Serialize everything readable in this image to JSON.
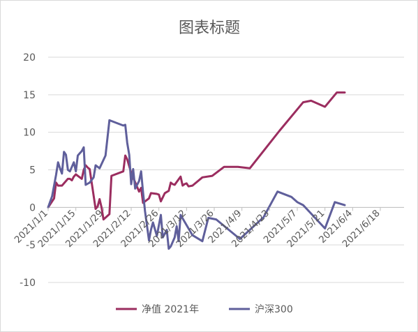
{
  "chart_data": {
    "type": "line",
    "title": "图表标题",
    "xlabel": "",
    "ylabel": "",
    "ylim": [
      -10,
      20
    ],
    "yticks": [
      -10,
      -5,
      0,
      5,
      10,
      15,
      20
    ],
    "x_range": [
      "2021/1/1",
      "2021/6/30"
    ],
    "x_tick_labels": [
      "2021/1/1",
      "2021/1/15",
      "2021/1/29",
      "2021/2/12",
      "2021/2/26",
      "2021/3/12",
      "2021/3/26",
      "2021/4/9",
      "2021/4/23",
      "2021/5/7",
      "2021/5/21",
      "2021/6/4",
      "2021/6/18"
    ],
    "grid": true,
    "legend_position": "bottom",
    "series": [
      {
        "name": "净值  2021年",
        "color": "#9b2d5f",
        "points": [
          [
            "2021/1/1",
            0
          ],
          [
            "2021/1/4",
            1.2
          ],
          [
            "2021/1/5",
            3.3
          ],
          [
            "2021/1/6",
            2.9
          ],
          [
            "2021/1/7",
            2.9
          ],
          [
            "2021/1/8",
            2.9
          ],
          [
            "2021/1/11",
            3.8
          ],
          [
            "2021/1/12",
            3.8
          ],
          [
            "2021/1/13",
            3.6
          ],
          [
            "2021/1/14",
            4.1
          ],
          [
            "2021/1/15",
            4.4
          ],
          [
            "2021/1/18",
            3.8
          ],
          [
            "2021/1/19",
            5.0
          ],
          [
            "2021/1/20",
            5.6
          ],
          [
            "2021/1/21",
            5.3
          ],
          [
            "2021/1/22",
            5.1
          ],
          [
            "2021/1/25",
            -0.2
          ],
          [
            "2021/1/26",
            0.1
          ],
          [
            "2021/1/27",
            1.1
          ],
          [
            "2021/1/28",
            0.0
          ],
          [
            "2021/1/29",
            -1.6
          ],
          [
            "2021/2/1",
            -0.9
          ],
          [
            "2021/2/2",
            4.2
          ],
          [
            "2021/2/8",
            4.8
          ],
          [
            "2021/2/9",
            6.9
          ],
          [
            "2021/2/10",
            6.4
          ],
          [
            "2021/2/12",
            4.6
          ],
          [
            "2021/2/16",
            2.1
          ],
          [
            "2021/2/17",
            2.6
          ],
          [
            "2021/2/18",
            0.6
          ],
          [
            "2021/2/21",
            1.2
          ],
          [
            "2021/2/22",
            1.9
          ],
          [
            "2021/2/25",
            1.8
          ],
          [
            "2021/2/26",
            1.7
          ],
          [
            "2021/2/27",
            0.8
          ],
          [
            "2021/3/1",
            1.9
          ],
          [
            "2021/3/3",
            2.2
          ],
          [
            "2021/3/4",
            3.3
          ],
          [
            "2021/3/5",
            3.1
          ],
          [
            "2021/3/6",
            3.0
          ],
          [
            "2021/3/9",
            4.1
          ],
          [
            "2021/3/10",
            2.9
          ],
          [
            "2021/3/11",
            3.1
          ],
          [
            "2021/3/12",
            3.2
          ],
          [
            "2021/3/13",
            2.8
          ],
          [
            "2021/3/15",
            2.9
          ],
          [
            "2021/3/20",
            4.0
          ],
          [
            "2021/3/25",
            4.2
          ],
          [
            "2021/3/31",
            5.4
          ],
          [
            "2021/4/7",
            5.4
          ],
          [
            "2021/4/13",
            5.2
          ],
          [
            "2021/4/28",
            10.2
          ],
          [
            "2021/5/10",
            14.0
          ],
          [
            "2021/5/14",
            14.2
          ],
          [
            "2021/5/21",
            13.4
          ],
          [
            "2021/5/27",
            15.3
          ],
          [
            "2021/5/31",
            15.3
          ]
        ]
      },
      {
        "name": "沪深300",
        "color": "#5f5f9b",
        "points": [
          [
            "2021/1/1",
            0
          ],
          [
            "2021/1/3",
            1.5
          ],
          [
            "2021/1/5",
            4.3
          ],
          [
            "2021/1/6",
            6.0
          ],
          [
            "2021/1/7",
            5.2
          ],
          [
            "2021/1/8",
            4.5
          ],
          [
            "2021/1/9",
            7.4
          ],
          [
            "2021/1/10",
            7.0
          ],
          [
            "2021/1/11",
            5.0
          ],
          [
            "2021/1/12",
            4.8
          ],
          [
            "2021/1/13",
            5.4
          ],
          [
            "2021/1/14",
            6.0
          ],
          [
            "2021/1/15",
            4.8
          ],
          [
            "2021/1/16",
            6.9
          ],
          [
            "2021/1/17",
            7.2
          ],
          [
            "2021/1/18",
            7.5
          ],
          [
            "2021/1/19",
            8.0
          ],
          [
            "2021/1/20",
            3.0
          ],
          [
            "2021/1/22",
            3.3
          ],
          [
            "2021/1/24",
            4.0
          ],
          [
            "2021/1/25",
            5.6
          ],
          [
            "2021/1/27",
            5.2
          ],
          [
            "2021/1/30",
            6.9
          ],
          [
            "2021/2/1",
            11.6
          ],
          [
            "2021/2/8",
            10.9
          ],
          [
            "2021/2/9",
            11.0
          ],
          [
            "2021/2/10",
            8.6
          ],
          [
            "2021/2/11",
            7.0
          ],
          [
            "2021/2/12",
            3.1
          ],
          [
            "2021/2/13",
            5.1
          ],
          [
            "2021/2/14",
            2.5
          ],
          [
            "2021/2/16",
            3.5
          ],
          [
            "2021/2/17",
            4.8
          ],
          [
            "2021/2/18",
            2.0
          ],
          [
            "2021/2/19",
            -0.5
          ],
          [
            "2021/2/21",
            -4.4
          ],
          [
            "2021/2/22",
            -3.0
          ],
          [
            "2021/2/23",
            -2.0
          ],
          [
            "2021/2/25",
            -3.8
          ],
          [
            "2021/2/27",
            -1.0
          ],
          [
            "2021/2/28",
            -4.0
          ],
          [
            "2021/3/2",
            -3.0
          ],
          [
            "2021/3/3",
            -5.5
          ],
          [
            "2021/3/4",
            -5.2
          ],
          [
            "2021/3/6",
            -4.0
          ],
          [
            "2021/3/7",
            -2.5
          ],
          [
            "2021/3/8",
            -4.5
          ],
          [
            "2021/3/9",
            -1.0
          ],
          [
            "2021/3/15",
            -3.7
          ],
          [
            "2021/3/20",
            -4.5
          ],
          [
            "2021/3/23",
            -1.4
          ],
          [
            "2021/3/27",
            -1.6
          ],
          [
            "2021/4/8",
            -4.2
          ],
          [
            "2021/4/20",
            -1.3
          ],
          [
            "2021/4/27",
            2.1
          ],
          [
            "2021/5/4",
            1.4
          ],
          [
            "2021/5/7",
            0.7
          ],
          [
            "2021/5/10",
            0.3
          ],
          [
            "2021/5/21",
            -2.8
          ],
          [
            "2021/5/26",
            0.7
          ],
          [
            "2021/5/31",
            0.3
          ]
        ]
      }
    ]
  }
}
